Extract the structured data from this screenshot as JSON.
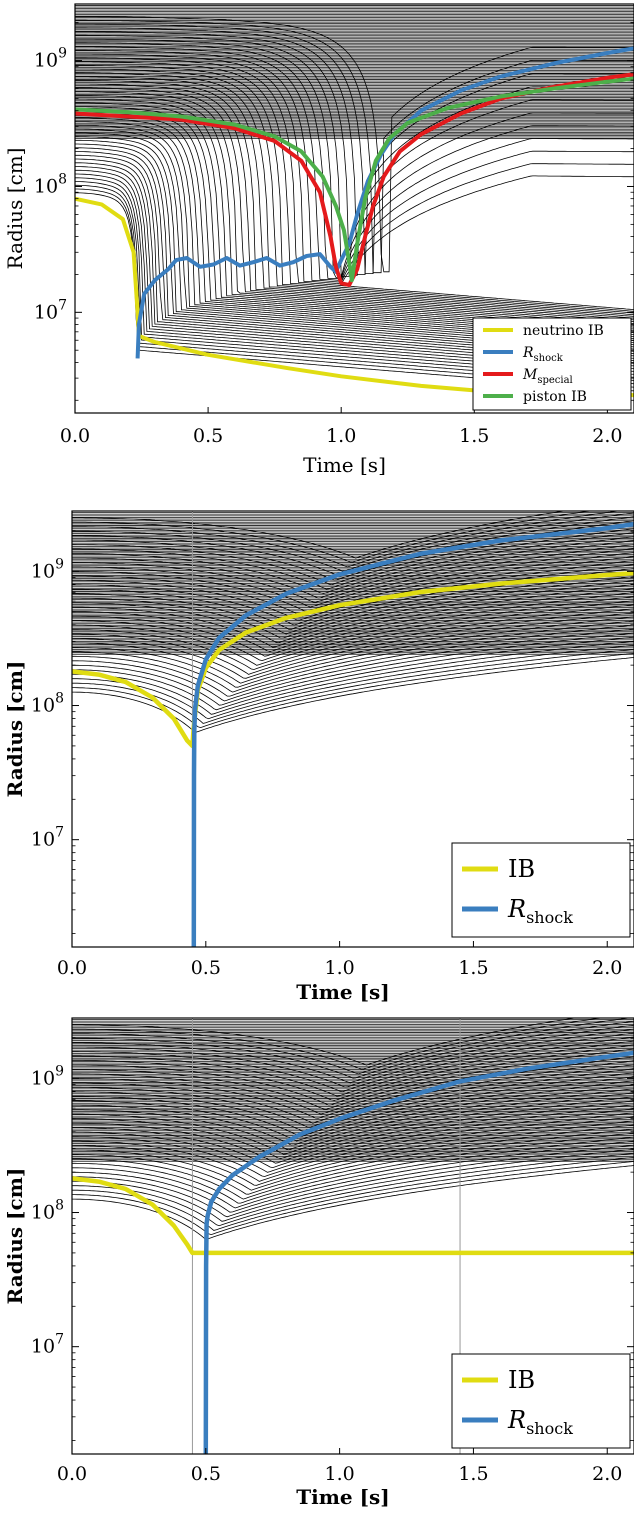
{
  "chart_data": [
    {
      "type": "line",
      "xlabel": "Time [s]",
      "ylabel": "Radius [cm]",
      "xlim": [
        0,
        2.1
      ],
      "ylim_log10": [
        6.2,
        9.45
      ],
      "yscale": "log",
      "xticks": [
        "0.0",
        "0.5",
        "1.0",
        "1.5",
        "2.0"
      ],
      "yticks": [
        {
          "base": "10",
          "exp": "7"
        },
        {
          "base": "10",
          "exp": "8"
        },
        {
          "base": "10",
          "exp": "9"
        }
      ],
      "legend_position": "lower right",
      "legend": [
        {
          "label": "neutrino IB",
          "color": "#e0dc12"
        },
        {
          "label": "R",
          "sub": "shock",
          "color": "#3a7ebf"
        },
        {
          "label": "M",
          "sub": "special",
          "color": "#e41a1c"
        },
        {
          "label": "piston IB",
          "color": "#4daf4a"
        }
      ],
      "series": [
        {
          "name": "neutrino IB",
          "color": "#e0dc12",
          "x": [
            0.0,
            0.1,
            0.18,
            0.22,
            0.235,
            0.24,
            0.3,
            0.5,
            0.8,
            1.0,
            1.3,
            1.6,
            2.1
          ],
          "y": [
            80000000.0,
            72000000.0,
            55000000.0,
            30000000.0,
            10000000.0,
            6500000.0,
            5800000.0,
            4600000.0,
            3600000.0,
            3100000.0,
            2600000.0,
            2300000.0,
            2200000.0
          ]
        },
        {
          "name": "R_shock",
          "color": "#3a7ebf",
          "x": [
            0.235,
            0.24,
            0.26,
            0.3,
            0.35,
            0.38,
            0.42,
            0.47,
            0.52,
            0.57,
            0.62,
            0.67,
            0.72,
            0.77,
            0.82,
            0.87,
            0.92,
            0.96,
            0.98,
            1.0,
            1.03,
            1.06,
            1.1,
            1.15,
            1.2,
            1.3,
            1.45,
            1.6,
            1.8,
            2.0,
            2.1
          ],
          "y": [
            4300000.0,
            8000000.0,
            14000000.0,
            18000000.0,
            22000000.0,
            26000000.0,
            27000000.0,
            23000000.0,
            24000000.0,
            27000000.0,
            23500000.0,
            25000000.0,
            27000000.0,
            23500000.0,
            25000000.0,
            28000000.0,
            29000000.0,
            23000000.0,
            21000000.0,
            26000000.0,
            35000000.0,
            60000000.0,
            110000000.0,
            180000000.0,
            260000000.0,
            400000000.0,
            580000000.0,
            750000000.0,
            950000000.0,
            1150000000.0,
            1250000000.0
          ]
        },
        {
          "name": "M_special",
          "color": "#e41a1c",
          "x": [
            0.0,
            0.2,
            0.4,
            0.6,
            0.75,
            0.85,
            0.92,
            0.96,
            0.98,
            1.0,
            1.03,
            1.06,
            1.09,
            1.12,
            1.16,
            1.22,
            1.3,
            1.45,
            1.6,
            1.8,
            2.0,
            2.1
          ],
          "y": [
            380000000.0,
            360000000.0,
            340000000.0,
            290000000.0,
            230000000.0,
            160000000.0,
            90000000.0,
            40000000.0,
            23000000.0,
            17000000.0,
            16500000.0,
            22000000.0,
            40000000.0,
            70000000.0,
            120000000.0,
            190000000.0,
            260000000.0,
            380000000.0,
            500000000.0,
            620000000.0,
            730000000.0,
            780000000.0
          ]
        },
        {
          "name": "piston IB",
          "color": "#4daf4a",
          "x": [
            0.0,
            0.2,
            0.4,
            0.6,
            0.75,
            0.85,
            0.93,
            0.98,
            1.01,
            1.03,
            1.04,
            1.06,
            1.09,
            1.13,
            1.18,
            1.25,
            1.4,
            1.6,
            1.8,
            2.0,
            2.1
          ],
          "y": [
            410000000.0,
            390000000.0,
            360000000.0,
            310000000.0,
            250000000.0,
            190000000.0,
            120000000.0,
            70000000.0,
            45000000.0,
            25000000.0,
            18000000.0,
            35000000.0,
            80000000.0,
            160000000.0,
            240000000.0,
            320000000.0,
            420000000.0,
            520000000.0,
            600000000.0,
            680000000.0,
            720000000.0
          ]
        }
      ]
    },
    {
      "type": "line",
      "xlabel": "Time [s]",
      "ylabel": "Radius [cm]",
      "xlim": [
        0,
        2.1
      ],
      "ylim_log10": [
        6.2,
        9.45
      ],
      "yscale": "log",
      "xticks": [
        "0.0",
        "0.5",
        "1.0",
        "1.5",
        "2.0"
      ],
      "yticks": [
        {
          "base": "10",
          "exp": "7"
        },
        {
          "base": "10",
          "exp": "8"
        },
        {
          "base": "10",
          "exp": "9"
        }
      ],
      "legend_position": "lower right",
      "legend": [
        {
          "label": "IB",
          "color": "#e0dc12"
        },
        {
          "label": "R",
          "sub": "shock",
          "color": "#3a7ebf"
        }
      ],
      "series": [
        {
          "name": "IB",
          "color": "#e0dc12",
          "x": [
            0.0,
            0.1,
            0.2,
            0.3,
            0.38,
            0.43,
            0.45,
            0.455,
            0.47,
            0.5,
            0.55,
            0.65,
            0.8,
            1.0,
            1.3,
            1.6,
            2.0,
            2.1
          ],
          "y": [
            180000000.0,
            170000000.0,
            150000000.0,
            115000000.0,
            80000000.0,
            55000000.0,
            50000000.0,
            70000000.0,
            130000000.0,
            190000000.0,
            260000000.0,
            350000000.0,
            450000000.0,
            560000000.0,
            700000000.0,
            810000000.0,
            940000000.0,
            970000000.0
          ]
        },
        {
          "name": "R_shock",
          "color": "#3a7ebf",
          "x": [
            0.455,
            0.456,
            0.457,
            0.46,
            0.47,
            0.5,
            0.55,
            0.65,
            0.8,
            1.0,
            1.3,
            1.6,
            2.0,
            2.1
          ],
          "y": [
            1500000.0,
            30000000.0,
            65000000.0,
            95000000.0,
            140000000.0,
            220000000.0,
            320000000.0,
            470000000.0,
            680000000.0,
            950000000.0,
            1350000000.0,
            1700000000.0,
            2100000000.0,
            2250000000.0
          ]
        }
      ]
    },
    {
      "type": "line",
      "xlabel": "Time [s]",
      "ylabel": "Radius [cm]",
      "xlim": [
        0,
        2.1
      ],
      "ylim_log10": [
        6.2,
        9.45
      ],
      "yscale": "log",
      "xticks": [
        "0.0",
        "0.5",
        "1.0",
        "1.5",
        "2.0"
      ],
      "yticks": [
        {
          "base": "10",
          "exp": "7"
        },
        {
          "base": "10",
          "exp": "8"
        },
        {
          "base": "10",
          "exp": "9"
        }
      ],
      "vlines": [
        0.45,
        1.45
      ],
      "legend_position": "lower right",
      "legend": [
        {
          "label": "IB",
          "color": "#e0dc12"
        },
        {
          "label": "R",
          "sub": "shock",
          "color": "#3a7ebf"
        }
      ],
      "series": [
        {
          "name": "IB",
          "color": "#e0dc12",
          "x": [
            0.0,
            0.1,
            0.2,
            0.3,
            0.38,
            0.43,
            0.45,
            2.1
          ],
          "y": [
            180000000.0,
            170000000.0,
            150000000.0,
            115000000.0,
            80000000.0,
            58000000.0,
            50000000.0,
            50000000.0
          ]
        },
        {
          "name": "R_shock",
          "color": "#3a7ebf",
          "x": [
            0.5,
            0.501,
            0.503,
            0.507,
            0.52,
            0.55,
            0.6,
            0.7,
            0.85,
            1.0,
            1.2,
            1.45,
            1.7,
            2.0,
            2.1
          ],
          "y": [
            1500000.0,
            40000000.0,
            83000000.0,
            95000000.0,
            120000000.0,
            150000000.0,
            190000000.0,
            260000000.0,
            380000000.0,
            500000000.0,
            680000000.0,
            950000000.0,
            1180000000.0,
            1450000000.0,
            1550000000.0
          ]
        }
      ]
    }
  ]
}
